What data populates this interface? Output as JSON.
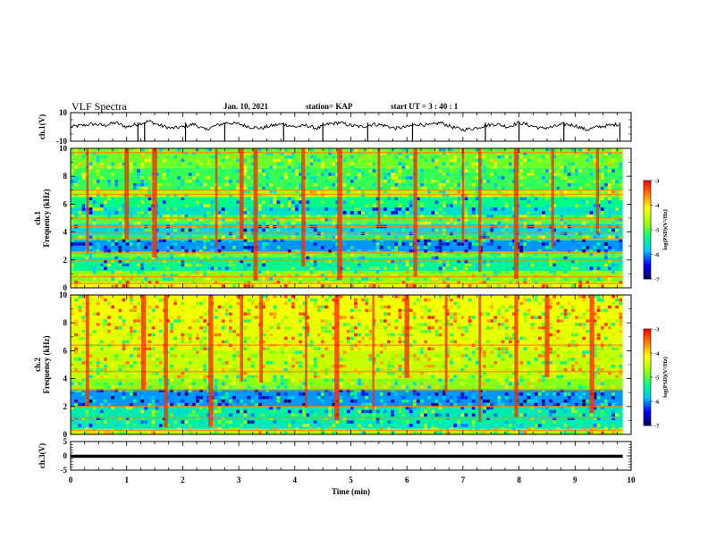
{
  "header": {
    "title": "VLF Spectra",
    "date": "Jan. 10, 2021",
    "station": "station= KAP",
    "start": "start  UT =  3 : 40 : 1"
  },
  "chart_data": [
    {
      "type": "line",
      "panel": "ch1-waveform",
      "ylabel": "ch.1(V)",
      "ylim": [
        -10,
        10
      ],
      "y_ticklabels": [
        "10",
        "-10"
      ],
      "xlim": [
        0,
        10
      ],
      "data_end_min": 9.85,
      "series": [
        {
          "x": [
            0.0,
            0.2,
            0.4,
            0.6,
            0.8,
            1.0,
            1.2,
            1.4,
            1.6,
            1.8,
            2.0,
            2.2,
            2.4,
            2.6,
            2.8,
            3.0,
            3.2,
            3.4,
            3.6,
            3.8,
            4.0,
            4.2,
            4.4,
            4.6,
            4.8,
            5.0,
            5.2,
            5.4,
            5.6,
            5.8,
            6.0,
            6.2,
            6.4,
            6.6,
            6.8,
            7.0,
            7.2,
            7.4,
            7.6,
            7.8,
            8.0,
            8.2,
            8.4,
            8.6,
            8.8,
            9.0,
            9.2,
            9.4,
            9.6,
            9.8
          ],
          "y": [
            0,
            1,
            2,
            1,
            3,
            0,
            2,
            4,
            1,
            -1,
            0,
            2,
            -2,
            1,
            3,
            2,
            0,
            -1,
            1,
            2,
            0,
            1,
            -1,
            2,
            3,
            1,
            0,
            2,
            1,
            -1,
            0,
            2,
            1,
            3,
            0,
            -2,
            -1,
            1,
            2,
            0,
            3,
            1,
            -1,
            0,
            2,
            1,
            -2,
            0,
            1,
            2
          ]
        }
      ],
      "spikes_x": [
        1.2,
        1.32,
        2.05,
        2.75,
        3.8,
        4.5,
        5.3,
        6.1,
        7.4,
        8.0,
        8.8,
        9.8
      ]
    },
    {
      "type": "heatmap",
      "panel": "ch1-spectrogram",
      "ylabel": "ch.1\nFrequency (kHz)",
      "ylim": [
        0,
        10
      ],
      "y_ticklabels": [
        "0",
        "2",
        "4",
        "6",
        "8",
        "10"
      ],
      "xlim": [
        0,
        10
      ],
      "data_end_min": 9.85,
      "bands": [
        {
          "from": 0.0,
          "to": 0.4,
          "level": -4.2
        },
        {
          "from": 0.4,
          "to": 1.2,
          "level": -4.8
        },
        {
          "from": 1.2,
          "to": 2.2,
          "level": -5.4
        },
        {
          "from": 2.2,
          "to": 2.6,
          "level": -4.9
        },
        {
          "from": 2.6,
          "to": 3.4,
          "level": -6.0
        },
        {
          "from": 3.4,
          "to": 3.8,
          "level": -5.2
        },
        {
          "from": 3.8,
          "to": 4.6,
          "level": -5.7
        },
        {
          "from": 4.6,
          "to": 5.2,
          "level": -5.0
        },
        {
          "from": 5.2,
          "to": 5.8,
          "level": -5.6
        },
        {
          "from": 5.8,
          "to": 6.5,
          "level": -5.3
        },
        {
          "from": 6.5,
          "to": 7.0,
          "level": -4.6
        },
        {
          "from": 7.0,
          "to": 8.6,
          "level": -5.1
        },
        {
          "from": 8.6,
          "to": 10.0,
          "level": -4.9
        }
      ],
      "lines_khz": [
        0.3,
        0.8,
        2.0,
        2.5,
        3.5,
        3.9,
        4.4,
        5.0,
        6.7,
        7.0,
        9.7
      ],
      "bursts_x": [
        0.3,
        1.0,
        1.5,
        2.6,
        3.05,
        3.3,
        4.15,
        4.8,
        5.5,
        6.15,
        7.0,
        7.3,
        7.95,
        8.6,
        9.4
      ]
    },
    {
      "type": "heatmap",
      "panel": "ch2-spectrogram",
      "ylabel": "ch.2\nFrequency (kHz)",
      "ylim": [
        0,
        10
      ],
      "y_ticklabels": [
        "0",
        "2",
        "4",
        "6",
        "8",
        "10"
      ],
      "xlim": [
        0,
        10
      ],
      "data_end_min": 9.85,
      "bands": [
        {
          "from": 0.0,
          "to": 0.4,
          "level": -4.6
        },
        {
          "from": 0.4,
          "to": 2.0,
          "level": -5.5
        },
        {
          "from": 2.0,
          "to": 3.2,
          "level": -6.0
        },
        {
          "from": 3.2,
          "to": 4.0,
          "level": -4.8
        },
        {
          "from": 4.0,
          "to": 6.0,
          "level": -4.5
        },
        {
          "from": 6.0,
          "to": 8.0,
          "level": -4.3
        },
        {
          "from": 8.0,
          "to": 10.0,
          "level": -4.2
        }
      ],
      "lines_khz": [
        0.3,
        1.2,
        2.0,
        3.2,
        4.5,
        6.4
      ],
      "bursts_x": [
        0.3,
        1.3,
        1.7,
        2.5,
        3.05,
        3.4,
        4.2,
        4.75,
        5.4,
        6.0,
        6.7,
        7.3,
        7.95,
        8.5,
        9.3
      ]
    },
    {
      "type": "line",
      "panel": "ch3-waveform",
      "ylabel": "ch.3(V)",
      "ylim": [
        -5,
        5
      ],
      "y_ticklabels": [
        "5",
        "0",
        "-5"
      ],
      "xlim": [
        0,
        10
      ],
      "data_end_min": 9.85,
      "level_band": [
        -0.7,
        0.4
      ],
      "xlabel": "Time (min)",
      "x_ticklabels": [
        "0",
        "1",
        "2",
        "3",
        "4",
        "5",
        "6",
        "7",
        "8",
        "9",
        "10"
      ]
    }
  ],
  "colorbars": [
    {
      "label": "log(PSD)(V²/Hz)",
      "range": [
        -7,
        -3
      ],
      "ticklabels": [
        "-3",
        "-4",
        "-5",
        "-6",
        "-7"
      ]
    },
    {
      "label": "log(PSD)(V²/Hz)",
      "range": [
        -7,
        -3
      ],
      "ticklabels": [
        "-3",
        "-4",
        "-5",
        "-6",
        "-7"
      ]
    }
  ],
  "colors": {
    "colormap": [
      "#000060",
      "#0000ff",
      "#00c8ff",
      "#00ff80",
      "#a0ff00",
      "#ffff00",
      "#ff8000",
      "#ff0000"
    ],
    "waveform": "#000000"
  }
}
